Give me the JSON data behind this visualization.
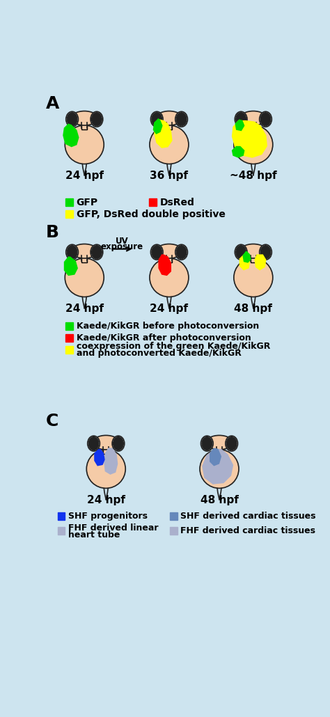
{
  "bg_color": "#cde4ef",
  "body_color": "#f5cba7",
  "body_edge": "#222222",
  "eye_color": "#111111",
  "green_color": "#00dd00",
  "yellow_color": "#ffff00",
  "red_color": "#ff0000",
  "blue_shf_color": "#1133ee",
  "gray_fhf_color": "#aab0cc",
  "blue_shf_derived": "#6688bb",
  "gray_fhf_cardiac": "#aab0cc",
  "section_A_label": "A",
  "section_B_label": "B",
  "section_C_label": "C",
  "A_times": [
    "24 hpf",
    "36 hpf",
    "~48 hpf"
  ],
  "B_times": [
    "24 hpf",
    "24 hpf",
    "48 hpf"
  ],
  "C_times": [
    "24 hpf",
    "48 hpf"
  ]
}
